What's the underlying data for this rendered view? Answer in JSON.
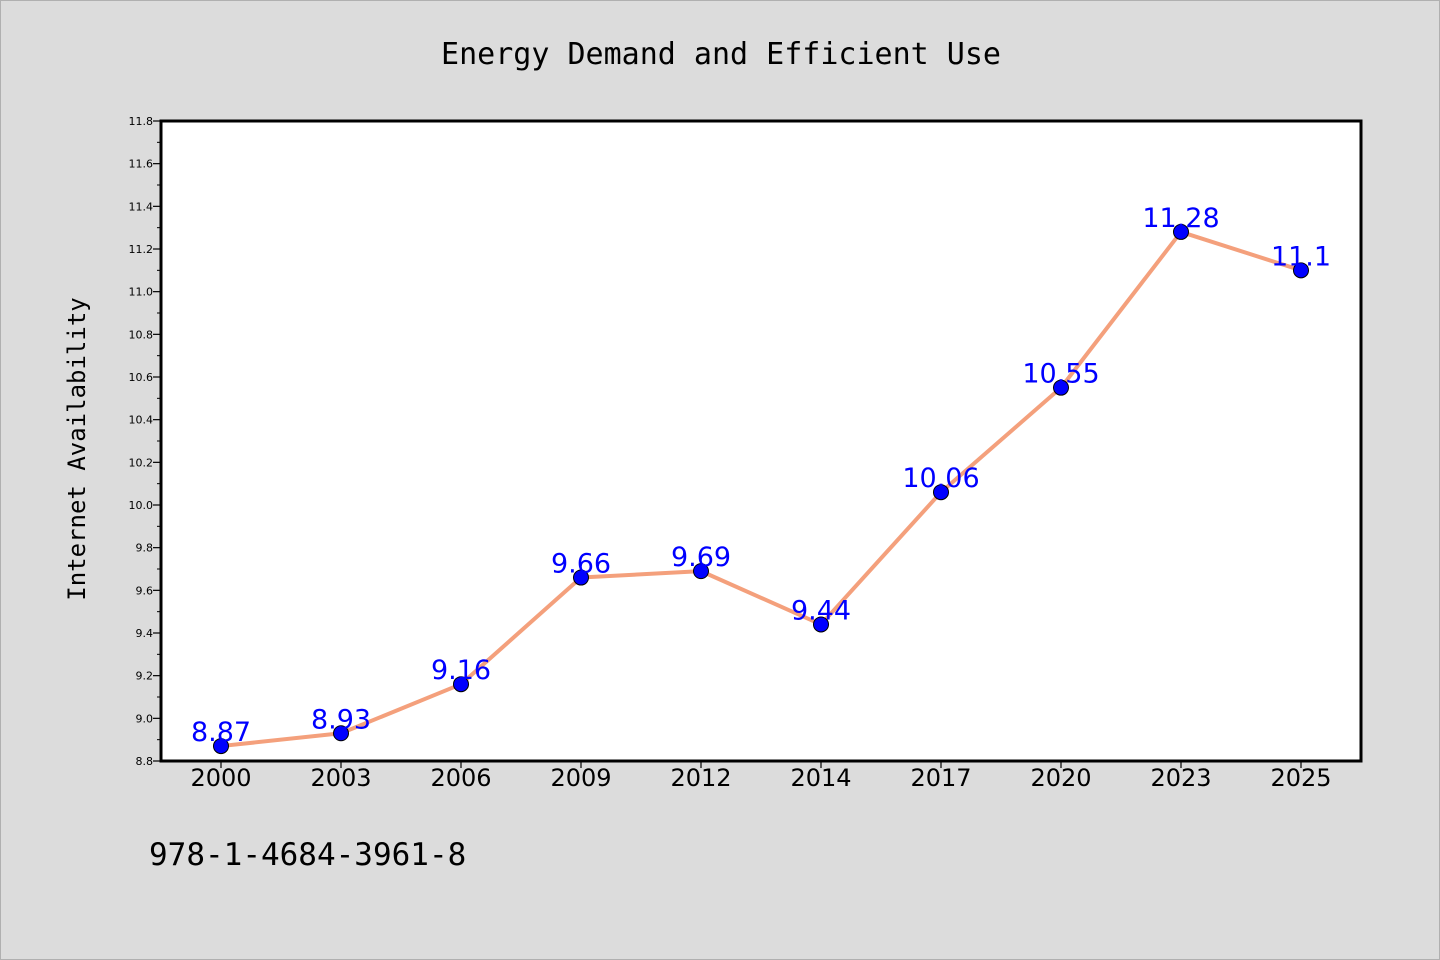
{
  "chart_data": {
    "type": "line",
    "title": "Energy Demand and Efficient Use",
    "xlabel": "",
    "ylabel": "Internet Availability",
    "categories": [
      "2000",
      "2003",
      "2006",
      "2009",
      "2012",
      "2014",
      "2017",
      "2020",
      "2023",
      "2025"
    ],
    "series": [
      {
        "values": [
          8.87,
          8.93,
          9.16,
          9.66,
          9.69,
          9.44,
          10.06,
          10.55,
          11.28,
          11.1
        ],
        "data_labels": [
          "8.87",
          "8.93",
          "9.16",
          "9.66",
          "9.69",
          "9.44",
          "10.06",
          "10.55",
          "11.28",
          "11.1"
        ]
      }
    ],
    "ylim": [
      8.8,
      11.8
    ],
    "yticks": [
      "8.8",
      "9.0",
      "9.2",
      "9.4",
      "9.6",
      "9.8",
      "10.0",
      "10.2",
      "10.4",
      "10.6",
      "10.8",
      "11.0",
      "11.2",
      "11.4",
      "11.6",
      "11.8"
    ],
    "grid": false,
    "legend": "none"
  },
  "footer": {
    "isbn": "978-1-4684-3961-8"
  },
  "colors": {
    "line": "#f4a07c",
    "marker": "#0000ff",
    "data_label": "#0000ff",
    "background": "#dcdcdc",
    "plot_background": "#ffffff"
  }
}
